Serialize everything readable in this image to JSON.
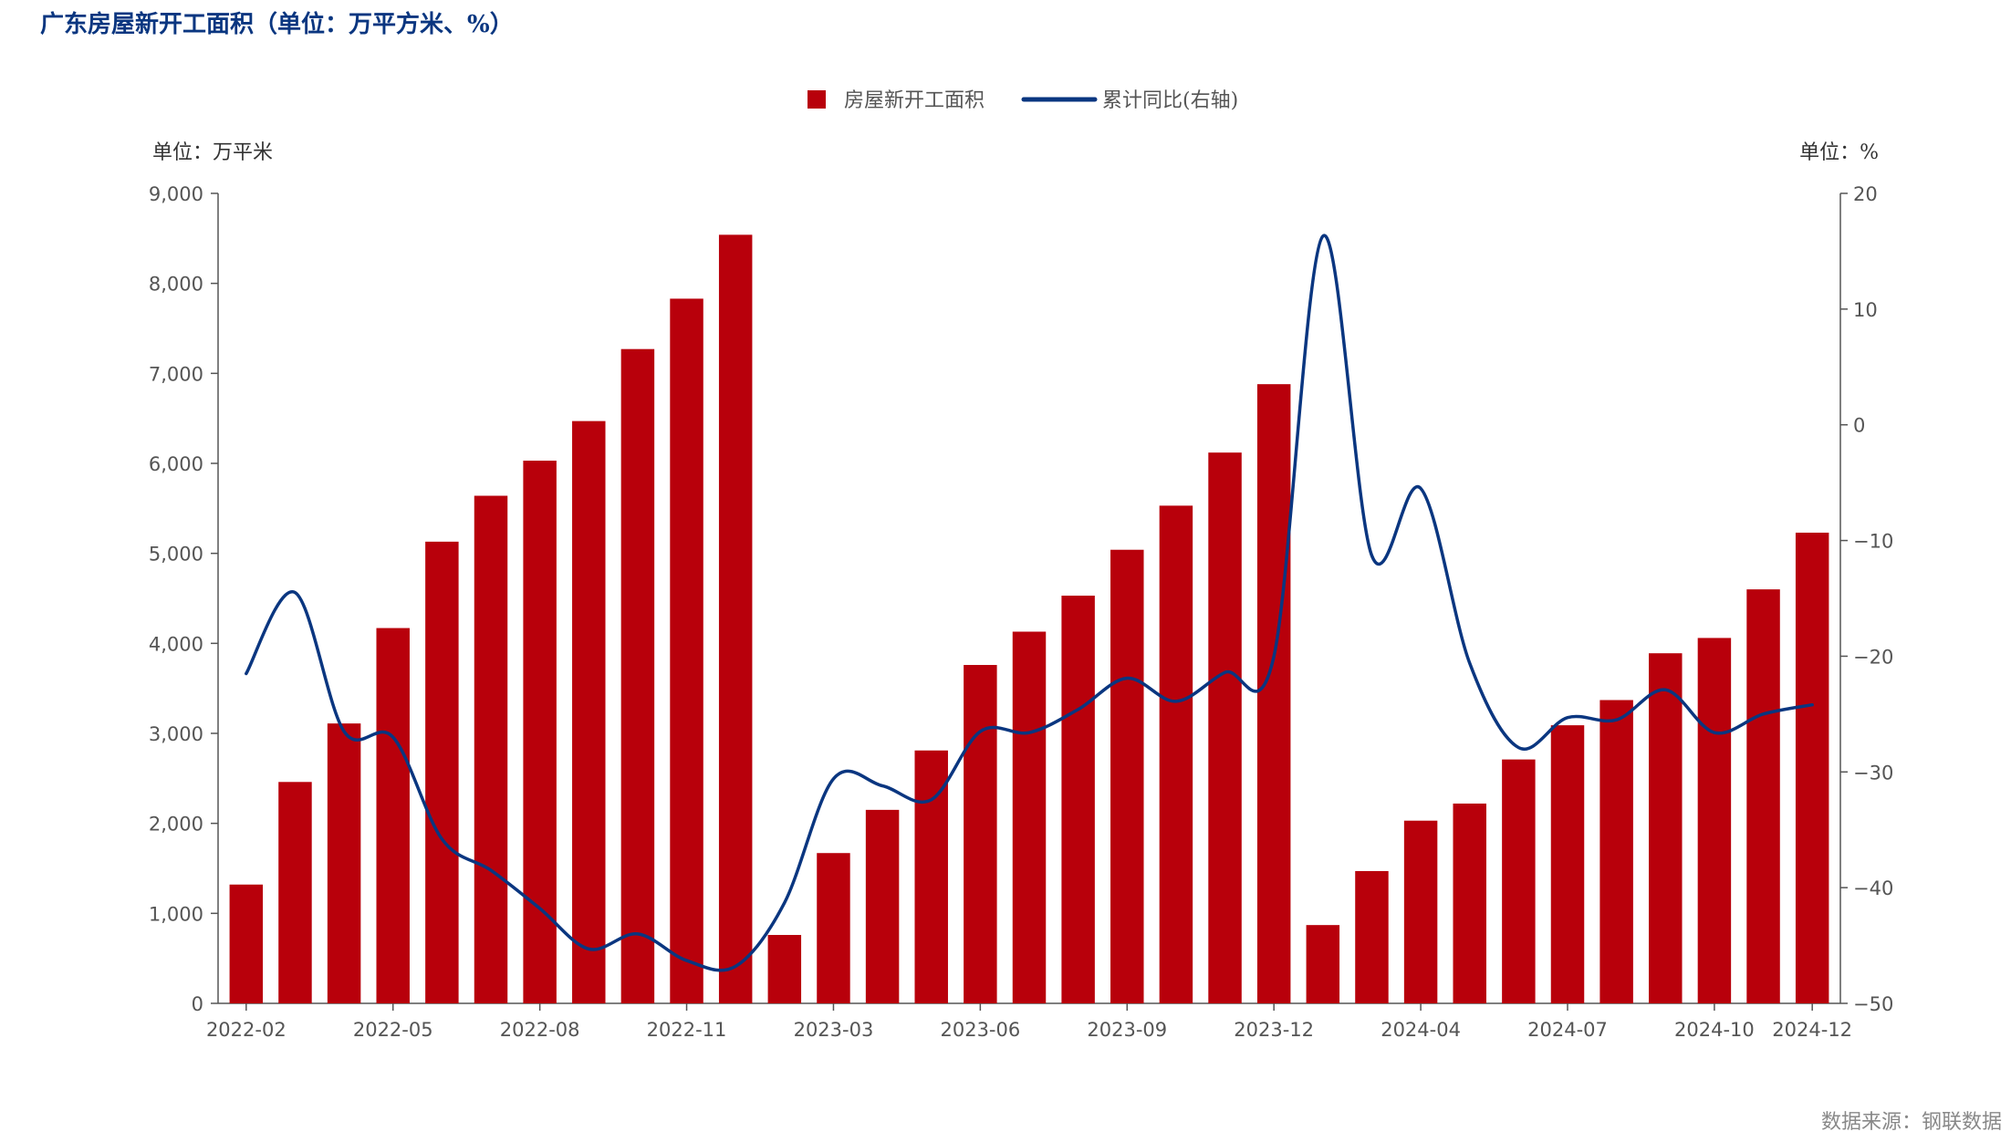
{
  "title": "广东房屋新开工面积（单位：万平方米、%）",
  "source": "数据来源：钢联数据",
  "chart_data": {
    "type": "bar+line",
    "categories": [
      "2022-02",
      "2022-03",
      "2022-04",
      "2022-05",
      "2022-06",
      "2022-07",
      "2022-08",
      "2022-09",
      "2022-10",
      "2022-11",
      "2022-12",
      "2023-02",
      "2023-03",
      "2023-04",
      "2023-05",
      "2023-06",
      "2023-07",
      "2023-08",
      "2023-09",
      "2023-10",
      "2023-11",
      "2023-12",
      "2024-02",
      "2024-03",
      "2024-04",
      "2024-05",
      "2024-06",
      "2024-07",
      "2024-08",
      "2024-09",
      "2024-10",
      "2024-11",
      "2024-12"
    ],
    "x_tick_labels": [
      "2022-02",
      "2022-05",
      "2022-08",
      "2022-11",
      "2023-03",
      "2023-06",
      "2023-09",
      "2023-12",
      "2024-04",
      "2024-07",
      "2024-10",
      "2024-12"
    ],
    "series": [
      {
        "name": "房屋新开工面积",
        "type": "bar",
        "axis": "left",
        "color": "#b8000b",
        "values": [
          1320,
          2460,
          3110,
          4170,
          5130,
          5640,
          6030,
          6470,
          7270,
          7830,
          8540,
          760,
          1670,
          2150,
          2810,
          3760,
          4130,
          4530,
          5040,
          5530,
          6120,
          6880,
          870,
          1470,
          2030,
          2220,
          2710,
          3090,
          3370,
          3890,
          4060,
          4600,
          5230
        ]
      },
      {
        "name": "累计同比(右轴)",
        "type": "line",
        "axis": "right",
        "color": "#0a3680",
        "values": [
          -21.5,
          -14.5,
          -26.5,
          -27.0,
          -35.8,
          -38.5,
          -41.8,
          -45.3,
          -44.0,
          -46.3,
          -46.8,
          -41.3,
          -30.6,
          -31.2,
          -32.4,
          -26.5,
          -26.6,
          -24.6,
          -21.9,
          -23.9,
          -21.4,
          -20.0,
          16.3,
          -11.3,
          -5.5,
          -20.6,
          -27.9,
          -25.3,
          -25.5,
          -22.9,
          -26.6,
          -25.0,
          -24.2
        ]
      }
    ],
    "y_left": {
      "label": "单位：万平米",
      "min": 0,
      "max": 9000,
      "ticks": [
        0,
        1000,
        2000,
        3000,
        4000,
        5000,
        6000,
        7000,
        8000,
        9000
      ],
      "tick_labels": [
        "0",
        "1,000",
        "2,000",
        "3,000",
        "4,000",
        "5,000",
        "6,000",
        "7,000",
        "8,000",
        "9,000"
      ]
    },
    "y_right": {
      "label": "单位：%",
      "min": -50,
      "max": 20,
      "ticks": [
        -50,
        -40,
        -30,
        -20,
        -10,
        0,
        10,
        20
      ],
      "tick_labels": [
        "−50",
        "−40",
        "−30",
        "−20",
        "−10",
        "0",
        "10",
        "20"
      ]
    },
    "legend_position": "top-center",
    "grid": false
  }
}
